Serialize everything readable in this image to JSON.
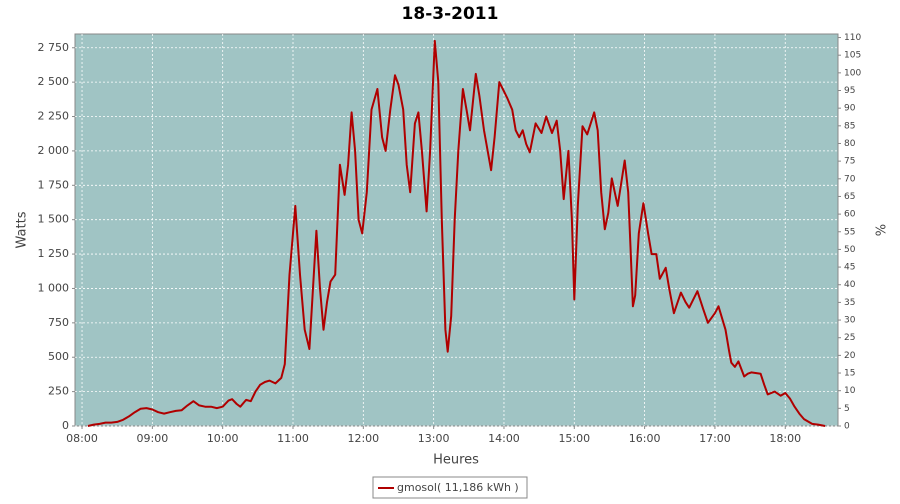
{
  "chart_data": {
    "type": "line",
    "title": "18-3-2011",
    "x_label": "Heures",
    "y_label": "Watts",
    "y2_label": "%",
    "x": [
      "08:05",
      "08:10",
      "08:15",
      "08:20",
      "08:25",
      "08:30",
      "08:35",
      "08:40",
      "08:45",
      "08:50",
      "08:55",
      "09:00",
      "09:05",
      "09:10",
      "09:15",
      "09:20",
      "09:25",
      "09:30",
      "09:35",
      "09:40",
      "09:45",
      "09:50",
      "09:55",
      "10:00",
      "10:05",
      "10:08",
      "10:12",
      "10:15",
      "10:20",
      "10:24",
      "10:28",
      "10:32",
      "10:36",
      "10:40",
      "10:45",
      "10:50",
      "10:53",
      "10:57",
      "11:02",
      "11:06",
      "11:10",
      "11:14",
      "11:20",
      "11:23",
      "11:26",
      "11:29",
      "11:32",
      "11:36",
      "11:40",
      "11:44",
      "11:47",
      "11:50",
      "11:53",
      "11:56",
      "11:59",
      "12:03",
      "12:07",
      "12:12",
      "12:16",
      "12:19",
      "12:23",
      "12:27",
      "12:30",
      "12:34",
      "12:37",
      "12:40",
      "12:44",
      "12:47",
      "12:50",
      "12:54",
      "12:57",
      "13:01",
      "13:04",
      "13:07",
      "13:10",
      "13:12",
      "13:15",
      "13:18",
      "13:21",
      "13:25",
      "13:28",
      "13:31",
      "13:36",
      "13:39",
      "13:43",
      "13:49",
      "13:52",
      "13:56",
      "13:59",
      "14:03",
      "14:07",
      "14:10",
      "14:13",
      "14:16",
      "14:19",
      "14:22",
      "14:27",
      "14:32",
      "14:36",
      "14:41",
      "14:45",
      "14:48",
      "14:51",
      "14:55",
      "14:58",
      "15:00",
      "15:03",
      "15:07",
      "15:11",
      "15:17",
      "15:20",
      "15:23",
      "15:26",
      "15:29",
      "15:32",
      "15:37",
      "15:43",
      "15:46",
      "15:48",
      "15:50",
      "15:52",
      "15:55",
      "15:59",
      "16:03",
      "16:06",
      "16:10",
      "16:13",
      "16:18",
      "16:21",
      "16:25",
      "16:31",
      "16:35",
      "16:38",
      "16:45",
      "16:50",
      "16:54",
      "17:00",
      "17:03",
      "17:09",
      "17:12",
      "17:14",
      "17:17",
      "17:20",
      "17:25",
      "17:28",
      "17:31",
      "17:39",
      "17:42",
      "17:45",
      "17:51",
      "17:56",
      "18:00",
      "18:04",
      "18:08",
      "18:12",
      "18:16",
      "18:20",
      "18:23",
      "18:28",
      "18:34"
    ],
    "series": [
      {
        "name": "gmosol( 11,186 kWh )",
        "color": "#b00000",
        "values": [
          0,
          10,
          15,
          25,
          25,
          30,
          45,
          70,
          100,
          125,
          130,
          120,
          100,
          90,
          100,
          110,
          115,
          150,
          180,
          150,
          140,
          140,
          130,
          140,
          185,
          195,
          160,
          140,
          190,
          180,
          250,
          300,
          320,
          330,
          310,
          350,
          450,
          1100,
          1600,
          1100,
          700,
          560,
          1420,
          1000,
          700,
          900,
          1050,
          1100,
          1900,
          1680,
          1900,
          2280,
          2000,
          1500,
          1400,
          1700,
          2300,
          2450,
          2100,
          2000,
          2300,
          2550,
          2480,
          2300,
          1900,
          1700,
          2200,
          2280,
          2000,
          1560,
          2000,
          2800,
          2500,
          1500,
          700,
          540,
          800,
          1500,
          2000,
          2450,
          2300,
          2150,
          2560,
          2400,
          2150,
          1860,
          2100,
          2500,
          2450,
          2380,
          2300,
          2150,
          2100,
          2150,
          2050,
          1990,
          2200,
          2130,
          2250,
          2130,
          2220,
          2000,
          1650,
          2000,
          1500,
          920,
          1600,
          2180,
          2120,
          2280,
          2150,
          1700,
          1430,
          1550,
          1800,
          1600,
          1930,
          1700,
          1300,
          870,
          950,
          1400,
          1620,
          1400,
          1250,
          1250,
          1070,
          1150,
          1000,
          820,
          970,
          900,
          860,
          980,
          850,
          750,
          820,
          870,
          700,
          550,
          460,
          430,
          470,
          360,
          380,
          390,
          380,
          300,
          230,
          250,
          220,
          240,
          200,
          140,
          90,
          50,
          30,
          15,
          10,
          0
        ]
      }
    ],
    "xlim": [
      "07:54",
      "18:45"
    ],
    "xticks": [
      "08:00",
      "09:00",
      "10:00",
      "11:00",
      "12:00",
      "13:00",
      "14:00",
      "15:00",
      "16:00",
      "17:00",
      "18:00"
    ],
    "ylim": [
      0,
      2850
    ],
    "yticks": [
      0,
      250,
      500,
      750,
      {
        "value": 1000,
        "label": "1 000"
      },
      {
        "value": 1250,
        "label": "1 250"
      },
      {
        "value": 1500,
        "label": "1 500"
      },
      {
        "value": 1750,
        "label": "1 750"
      },
      {
        "value": 2000,
        "label": "2 000"
      },
      {
        "value": 2250,
        "label": "2 250"
      },
      {
        "value": 2500,
        "label": "2 500"
      },
      {
        "value": 2750,
        "label": "2 750"
      }
    ],
    "y2lim": [
      0,
      111
    ],
    "y2ticks": [
      0,
      5,
      10,
      15,
      20,
      25,
      30,
      35,
      40,
      45,
      50,
      55,
      60,
      65,
      70,
      75,
      80,
      85,
      90,
      95,
      100,
      105,
      110
    ],
    "grid": true,
    "legend": "bottom",
    "background": "#a0c4c4"
  }
}
